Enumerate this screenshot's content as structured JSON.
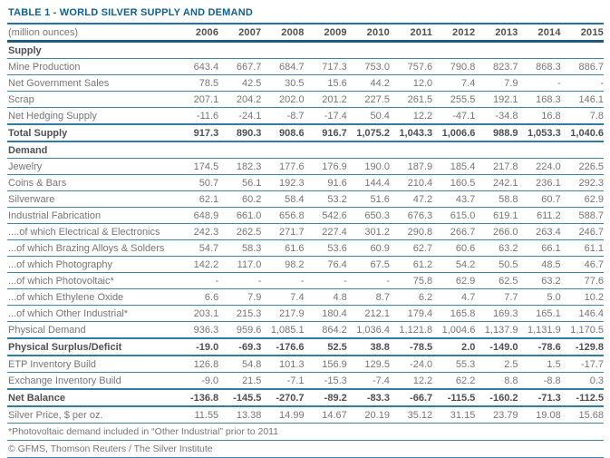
{
  "table": {
    "title": "TABLE 1 - WORLD SILVER SUPPLY AND DEMAND",
    "unit_label": "(million ounces)",
    "years": [
      "2006",
      "2007",
      "2008",
      "2009",
      "2010",
      "2011",
      "2012",
      "2013",
      "2014",
      "2015"
    ],
    "rows": [
      {
        "label": "Supply",
        "style": "section",
        "values": []
      },
      {
        "label": "Mine Production",
        "style": "normal",
        "values": [
          "643.4",
          "667.7",
          "684.7",
          "717.3",
          "753.0",
          "757.6",
          "790.8",
          "823.7",
          "868.3",
          "886.7"
        ]
      },
      {
        "label": "Net Government Sales",
        "style": "normal",
        "values": [
          "78.5",
          "42.5",
          "30.5",
          "15.6",
          "44.2",
          "12.0",
          "7.4",
          "7.9",
          "-",
          "-"
        ]
      },
      {
        "label": "Scrap",
        "style": "normal",
        "values": [
          "207.1",
          "204.2",
          "202.0",
          "201.2",
          "227.5",
          "261.5",
          "255.5",
          "192.1",
          "168.3",
          "146.1"
        ]
      },
      {
        "label": "Net Hedging Supply",
        "style": "normal",
        "values": [
          "-11.6",
          "-24.1",
          "-8.7",
          "-17.4",
          "50.4",
          "12.2",
          "-47.1",
          "-34.8",
          "16.8",
          "7.8"
        ]
      },
      {
        "label": "Total Supply",
        "style": "bold",
        "values": [
          "917.3",
          "890.3",
          "908.6",
          "916.7",
          "1,075.2",
          "1,043.3",
          "1,006.6",
          "988.9",
          "1,053.3",
          "1,040.6"
        ]
      },
      {
        "label": "Demand",
        "style": "section",
        "values": []
      },
      {
        "label": "Jewelry",
        "style": "normal",
        "values": [
          "174.5",
          "182.3",
          "177.6",
          "176.9",
          "190.0",
          "187.9",
          "185.4",
          "217.8",
          "224.0",
          "226.5"
        ]
      },
      {
        "label": "Coins & Bars",
        "style": "normal",
        "values": [
          "50.7",
          "56.1",
          "192.3",
          "91.6",
          "144.4",
          "210.4",
          "160.5",
          "242.1",
          "236.1",
          "292.3"
        ]
      },
      {
        "label": "Silverware",
        "style": "normal",
        "values": [
          "62.1",
          "60.2",
          "58.4",
          "53.2",
          "51.6",
          "47.2",
          "43.7",
          "58.8",
          "60.7",
          "62.9"
        ]
      },
      {
        "label": "Industrial Fabrication",
        "style": "normal",
        "values": [
          "648.9",
          "661.0",
          "656.8",
          "542.6",
          "650.3",
          "676.3",
          "615.0",
          "619.1",
          "611.2",
          "588.7"
        ]
      },
      {
        "label": "....of which Electrical & Electronics",
        "style": "normal",
        "values": [
          "242.3",
          "262.5",
          "271.7",
          "227.4",
          "301.2",
          "290.8",
          "266.7",
          "266.0",
          "263.4",
          "246.7"
        ]
      },
      {
        "label": "...of which Brazing Alloys & Solders",
        "style": "normal",
        "values": [
          "54.7",
          "58.3",
          "61.6",
          "53.6",
          "60.9",
          "62.7",
          "60.6",
          "63.2",
          "66.1",
          "61.1"
        ]
      },
      {
        "label": "...of which Photography",
        "style": "normal",
        "values": [
          "142.2",
          "117.0",
          "98.2",
          "76.4",
          "67.5",
          "61.2",
          "54.2",
          "50.5",
          "48.5",
          "46.7"
        ]
      },
      {
        "label": "...of which Photovoltaic*",
        "style": "normal",
        "values": [
          "-",
          "-",
          "-",
          "-",
          "-",
          "75.8",
          "62.9",
          "62.5",
          "63.2",
          "77.6"
        ]
      },
      {
        "label": "...of which Ethylene Oxide",
        "style": "normal",
        "values": [
          "6.6",
          "7.9",
          "7.4",
          "4.8",
          "8.7",
          "6.2",
          "4.7",
          "7.7",
          "5.0",
          "10.2"
        ]
      },
      {
        "label": "...of which Other Industrial*",
        "style": "normal",
        "values": [
          "203.1",
          "215.3",
          "217.9",
          "180.4",
          "212.1",
          "179.4",
          "165.8",
          "169.3",
          "165.1",
          "146.4"
        ]
      },
      {
        "label": "Physical Demand",
        "style": "normal",
        "values": [
          "936.3",
          "959.6",
          "1,085.1",
          "864.2",
          "1,036.4",
          "1,121.8",
          "1,004.6",
          "1,137.9",
          "1,131.9",
          "1,170.5"
        ]
      },
      {
        "label": "Physical Surplus/Deficit",
        "style": "bold",
        "values": [
          "-19.0",
          "-69.3",
          "-176.6",
          "52.5",
          "38.8",
          "-78.5",
          "2.0",
          "-149.0",
          "-78.6",
          "-129.8"
        ]
      },
      {
        "label": "ETP Inventory Build",
        "style": "normal",
        "values": [
          "126.8",
          "54.8",
          "101.3",
          "156.9",
          "129.5",
          "-24.0",
          "55.3",
          "2.5",
          "1.5",
          "-17.7"
        ]
      },
      {
        "label": "Exchange Inventory Build",
        "style": "normal",
        "values": [
          "-9.0",
          "21.5",
          "-7.1",
          "-15.3",
          "-7.4",
          "12.2",
          "62.2",
          "8.8",
          "-8.8",
          "0.3"
        ]
      },
      {
        "label": "Net Balance",
        "style": "bold",
        "values": [
          "-136.8",
          "-145.5",
          "-270.7",
          "-89.2",
          "-83.3",
          "-66.7",
          "-115.5",
          "-160.2",
          "-71.3",
          "-112.5"
        ]
      },
      {
        "label": "Silver Price, $ per oz.",
        "style": "normal",
        "values": [
          "11.55",
          "13.38",
          "14.99",
          "14.67",
          "20.19",
          "35.12",
          "31.15",
          "23.79",
          "19.08",
          "15.68"
        ]
      }
    ],
    "footnote": "*Photovoltaic demand included in “Other Industrial” prior to 2011",
    "copyright": "© GFMS, Thomson Reuters / The Silver Institute",
    "colors": {
      "title": "#0d5f94",
      "rule_thin": "#3c85ad",
      "rule_heavy": "#1c5a85",
      "text_normal": "#74767a",
      "text_bold": "#4d5054"
    }
  }
}
